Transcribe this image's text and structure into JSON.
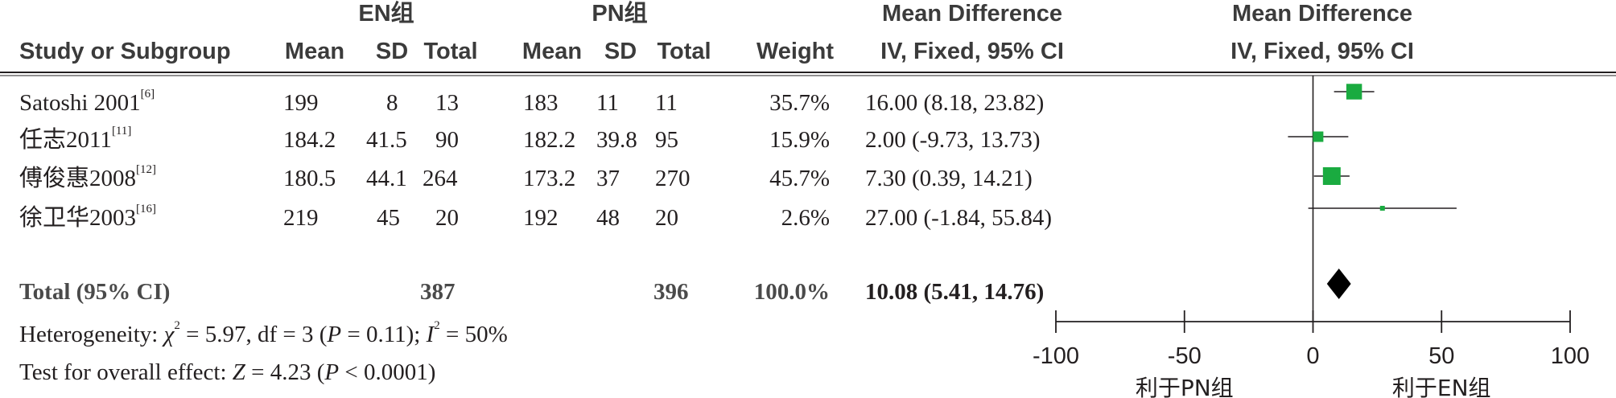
{
  "header": {
    "group_en": "EN组",
    "group_pn": "PN组",
    "md_title_1": "Mean Difference",
    "md_title_2": "Mean Difference",
    "col_study": "Study or Subgroup",
    "col_en_mean": "Mean",
    "col_en_sd": "SD",
    "col_en_total": "Total",
    "col_pn_mean": "Mean",
    "col_pn_sd": "SD",
    "col_pn_total": "Total",
    "col_weight": "Weight",
    "col_ci": "IV, Fixed, 95% CI",
    "col_plot": "IV, Fixed, 95% CI"
  },
  "studies": [
    {
      "name": "Satoshi 2001",
      "ref": "[6]",
      "en_mean": "199",
      "en_sd": "8",
      "en_total": "13",
      "pn_mean": "183",
      "pn_sd": "11",
      "pn_total": "11",
      "weight": "35.7%",
      "ci_text": "16.00 (8.18, 23.82)"
    },
    {
      "name": "任志2011",
      "ref": "[11]",
      "en_mean": "184.2",
      "en_sd": "41.5",
      "en_total": "90",
      "pn_mean": "182.2",
      "pn_sd": "39.8",
      "pn_total": "95",
      "weight": "15.9%",
      "ci_text": "2.00 (-9.73, 13.73)"
    },
    {
      "name": "傅俊惠2008",
      "ref": "[12]",
      "en_mean": "180.5",
      "en_sd": "44.1",
      "en_total": "264",
      "pn_mean": "173.2",
      "pn_sd": "37",
      "pn_total": "270",
      "weight": "45.7%",
      "ci_text": "7.30 (0.39, 14.21)"
    },
    {
      "name": "徐卫华2003",
      "ref": "[16]",
      "en_mean": "219",
      "en_sd": "45",
      "en_total": "20",
      "pn_mean": "192",
      "pn_sd": "48",
      "pn_total": "20",
      "weight": "2.6%",
      "ci_text": "27.00 (-1.84, 55.84)"
    }
  ],
  "total": {
    "label": "Total (95% CI)",
    "en_total": "387",
    "pn_total": "396",
    "weight": "100.0%",
    "ci_text": "10.08 (5.41, 14.76)"
  },
  "heterogeneity": {
    "prefix": "Heterogeneity: ",
    "chi_sym": "χ",
    "chi_val": " = 5.97, df = 3 (",
    "p_sym": "P",
    "p_val": " = 0.11); ",
    "i_sym": "I",
    "i_val": " = 50%"
  },
  "overall": {
    "prefix": "Test for overall effect: ",
    "z_sym": "Z",
    "z_val": " = 4.23 (",
    "p_sym": "P",
    "p_val": " < 0.0001)"
  },
  "colors": {
    "marker": "#1aab40",
    "line": "#231f20"
  },
  "chart_data": {
    "type": "forest",
    "measure": "Mean Difference",
    "method": "IV, Fixed, 95% CI",
    "xlim": [
      -100,
      100
    ],
    "ticks": [
      -100,
      -50,
      0,
      50,
      100
    ],
    "tick_labels": [
      "-100",
      "-50",
      "0",
      "50",
      "100"
    ],
    "favours_left": "利于PN组",
    "favours_right": "利于EN组",
    "series": [
      {
        "name": "Satoshi 2001",
        "md": 16.0,
        "lo": 8.18,
        "hi": 23.82,
        "weight": 35.7
      },
      {
        "name": "任志2011",
        "md": 2.0,
        "lo": -9.73,
        "hi": 13.73,
        "weight": 15.9
      },
      {
        "name": "傅俊惠2008",
        "md": 7.3,
        "lo": 0.39,
        "hi": 14.21,
        "weight": 45.7
      },
      {
        "name": "徐卫华2003",
        "md": 27.0,
        "lo": -1.84,
        "hi": 55.84,
        "weight": 2.6
      }
    ],
    "pooled": {
      "md": 10.08,
      "lo": 5.41,
      "hi": 14.76
    }
  }
}
